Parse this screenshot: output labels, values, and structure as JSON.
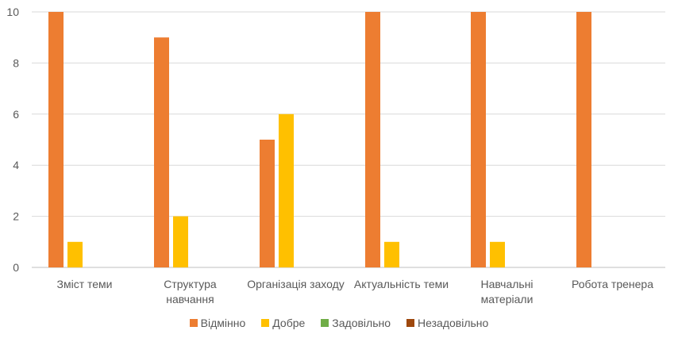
{
  "chart_data": {
    "type": "bar",
    "categories": [
      "Зміст теми",
      "Структура\nнавчання",
      "Організація заходу",
      "Актуальність теми",
      "Навчальні\nматеріали",
      "Робота тренера"
    ],
    "series": [
      {
        "name": "Відмінно",
        "color": "#ED7D31",
        "values": [
          10,
          9,
          5,
          10,
          10,
          10
        ]
      },
      {
        "name": "Добре",
        "color": "#FFC000",
        "values": [
          1,
          2,
          6,
          1,
          1,
          0
        ]
      },
      {
        "name": "Задовільно",
        "color": "#70AD47",
        "values": [
          0,
          0,
          0,
          0,
          0,
          0
        ]
      },
      {
        "name": "Незадовільно",
        "color": "#9E480E",
        "values": [
          0,
          0,
          0,
          0,
          0,
          0
        ]
      }
    ],
    "ylim": [
      0,
      10
    ],
    "yticks": [
      "0",
      "2",
      "4",
      "6",
      "8",
      "10"
    ],
    "grid": true,
    "legend_position": "bottom"
  }
}
